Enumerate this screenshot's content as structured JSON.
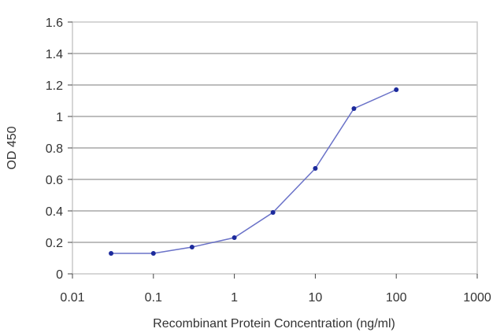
{
  "chart_data": {
    "type": "line",
    "xlabel": "Recombinant Protein Concentration (ng/ml)",
    "ylabel": "OD 450",
    "x_scale": "log",
    "xlim": [
      0.01,
      1000
    ],
    "ylim": [
      0,
      1.6
    ],
    "x_ticks": [
      0.01,
      0.1,
      1,
      10,
      100,
      1000
    ],
    "x_tick_labels": [
      "0.01",
      "0.1",
      "1",
      "10",
      "100",
      "1000"
    ],
    "y_ticks": [
      0,
      0.2,
      0.4,
      0.6,
      0.8,
      1,
      1.2,
      1.4,
      1.6
    ],
    "y_tick_labels": [
      "0",
      "0.2",
      "0.4",
      "0.6",
      "0.8",
      "1",
      "1.2",
      "1.4",
      "1.6"
    ],
    "grid": "horizontal",
    "legend": "none",
    "series": [
      {
        "x": [
          0.03,
          0.1,
          0.3,
          1,
          3,
          10,
          30,
          100
        ],
        "values": [
          0.13,
          0.13,
          0.17,
          0.23,
          0.39,
          0.67,
          1.05,
          1.17
        ]
      }
    ],
    "colors": {
      "line": "#6a72c8",
      "marker": "#1c2a9c",
      "grid": "#bdbdbd",
      "frame": "#c8c8c8",
      "background": "#ffffff"
    }
  }
}
